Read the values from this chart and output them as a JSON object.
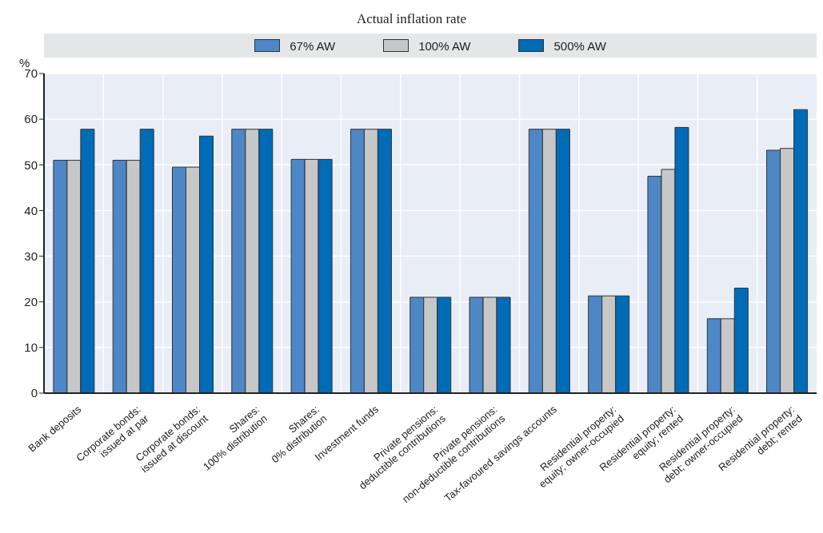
{
  "chart_data": {
    "type": "bar",
    "title": "Actual inflation rate",
    "ylabel": "%",
    "categories": [
      "Bank deposits",
      "Corporate bonds:\nissued at par",
      "Corporate bonds:\nissued at discount",
      "Shares:\n100% distribution",
      "Shares:\n0% distribution",
      "Investment funds",
      "Private pensions:\ndeductible contributions",
      "Private pensions:\nnon-deductible contributions",
      "Tax-favoured savings accounts",
      "Residential property:\nequity; owner-occupied",
      "Residential property:\nequity; rented",
      "Residential property:\ndebt; owner-occupied",
      "Residential property:\ndebt; rented"
    ],
    "series": [
      {
        "name": "67% AW",
        "color": "#4e87c6",
        "values": [
          51,
          51,
          49.5,
          57.8,
          51.2,
          57.8,
          21,
          21,
          57.8,
          21.3,
          47.5,
          16.3,
          53.2
        ]
      },
      {
        "name": "100% AW",
        "color": "#c6c7c9",
        "values": [
          51,
          51,
          49.5,
          57.8,
          51.2,
          57.8,
          21,
          21,
          57.8,
          21.3,
          49,
          16.3,
          53.6
        ]
      },
      {
        "name": "500% AW",
        "color": "#006bb6",
        "values": [
          57.8,
          57.8,
          56.3,
          57.8,
          51.2,
          57.8,
          21,
          21,
          57.8,
          21.3,
          58.2,
          23,
          62.1
        ]
      }
    ],
    "ylim": [
      0,
      70
    ],
    "yticks": [
      0,
      10,
      20,
      30,
      40,
      50,
      60,
      70
    ],
    "grid": true,
    "legend": "top"
  }
}
